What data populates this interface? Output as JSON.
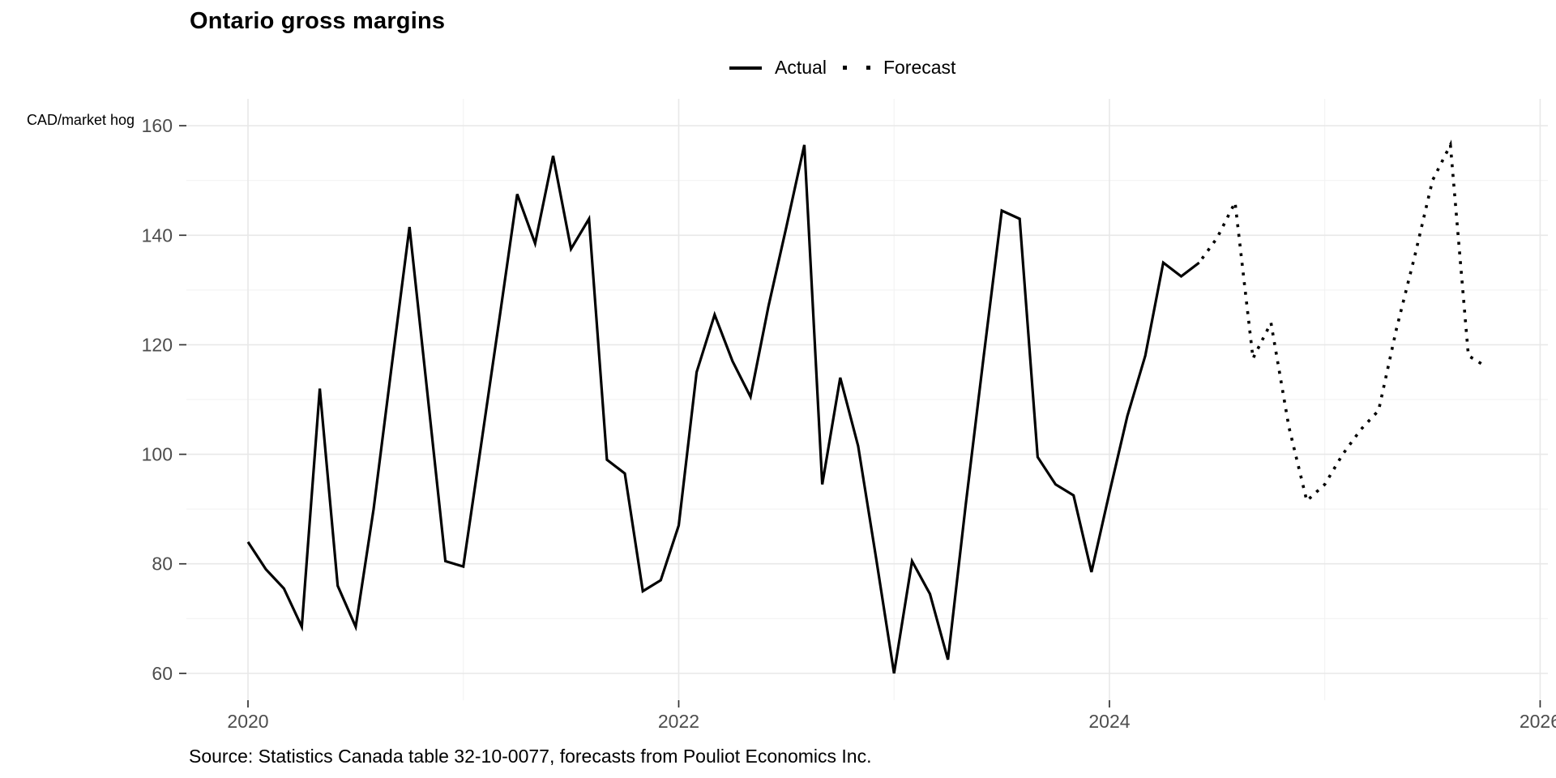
{
  "title": "Ontario gross margins",
  "y_axis_unit": "CAD/market hog",
  "caption": "Source: Statistics Canada table 32-10-0077, forecasts from Pouliot Economics Inc.",
  "legend": {
    "actual_label": "Actual",
    "forecast_label": "Forecast"
  },
  "colors": {
    "line": "#000000",
    "tick_label": "#4d4d4d",
    "tick_mark": "#333333",
    "grid_major": "#e8e8e8",
    "grid_minor": "#f1f1f1",
    "background": "#ffffff"
  },
  "chart_data": {
    "type": "line",
    "title": "Ontario gross margins",
    "xlabel": "",
    "ylabel": "CAD/market hog",
    "x_ticks_major": [
      2020,
      2022,
      2024,
      2026
    ],
    "x_ticks_minor": [
      2021,
      2023,
      2025
    ],
    "y_ticks_major": [
      60,
      80,
      100,
      120,
      140,
      160
    ],
    "y_ticks_minor": [
      70,
      90,
      110,
      130,
      150
    ],
    "ylim": [
      55.1,
      164.9
    ],
    "xlim": [
      2019.714,
      2026.036
    ],
    "grid": true,
    "legend_position": "top",
    "series": [
      {
        "name": "Actual",
        "style": "solid",
        "start_year": 2020,
        "start_month": 1,
        "frequency": "monthly",
        "values": [
          84,
          79,
          75.5,
          68.5,
          112,
          76,
          68.5,
          90,
          116,
          141.5,
          111,
          80.5,
          79.5,
          102,
          124.5,
          147.5,
          138.5,
          154.5,
          137.5,
          143,
          99,
          96.5,
          75,
          77,
          87,
          115,
          125.5,
          117,
          110.5,
          127,
          141.5,
          156.5,
          94.5,
          114,
          101.5,
          81,
          60,
          80.5,
          74.5,
          62.5,
          91,
          118,
          144.5,
          143,
          99.5,
          94.5,
          92.5,
          78.5,
          93,
          107,
          118,
          135,
          132.5,
          135
        ]
      },
      {
        "name": "Forecast",
        "style": "dotted",
        "start_year": 2024,
        "start_month": 6,
        "frequency": "monthly",
        "values": [
          135,
          139.5,
          146,
          117.5,
          124,
          105,
          91.5,
          94.5,
          100,
          104.5,
          108,
          123,
          136,
          150,
          156.5,
          118,
          116
        ]
      }
    ]
  }
}
